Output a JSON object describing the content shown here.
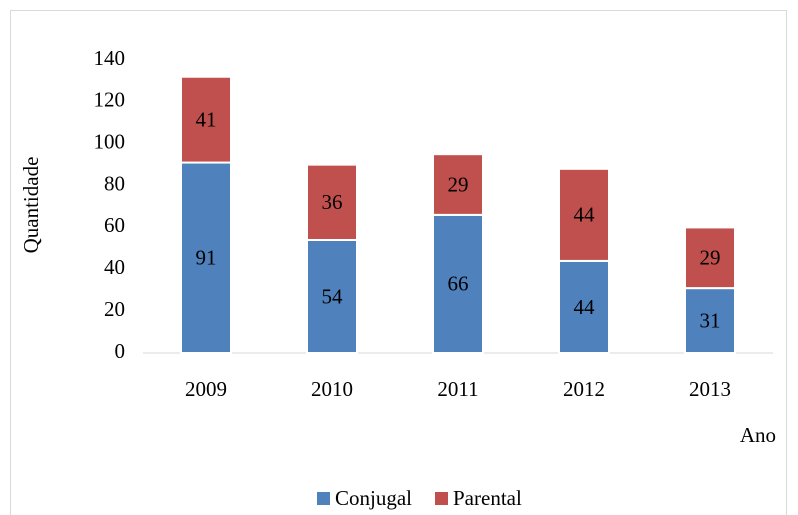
{
  "chart_data": {
    "type": "stacked_bar",
    "y_label": "Quantidade",
    "x_label": "Ano",
    "categories": [
      "2009",
      "2010",
      "2011",
      "2012",
      "2013"
    ],
    "series": [
      {
        "name": "Conjugal",
        "color": "#4f81bd",
        "values": [
          91,
          54,
          66,
          44,
          31
        ]
      },
      {
        "name": "Parental",
        "color": "#c0504d",
        "values": [
          41,
          36,
          29,
          44,
          29
        ]
      }
    ],
    "ylim": [
      0,
      140
    ],
    "yticks": [
      0,
      20,
      40,
      60,
      80,
      100,
      120,
      140
    ],
    "grid": false,
    "legend": "bottom"
  }
}
